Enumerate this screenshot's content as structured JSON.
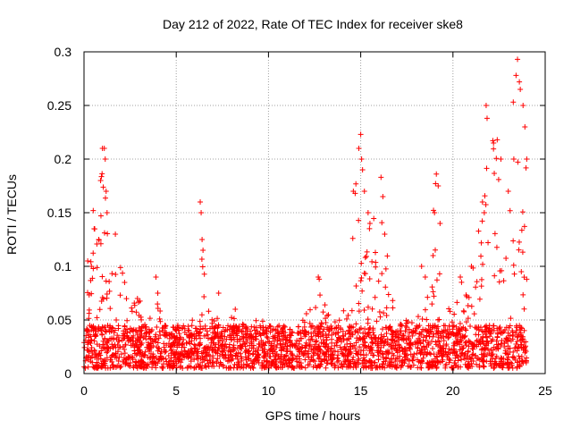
{
  "chart_data": {
    "type": "scatter",
    "title": "Day 212 of 2022, Rate Of TEC Index for receiver ske8",
    "xlabel": "GPS time / hours",
    "ylabel": "ROTI / TECUs",
    "xlim": [
      0,
      25
    ],
    "ylim": [
      0,
      0.3
    ],
    "xticks": [
      {
        "v": 0,
        "label": "0"
      },
      {
        "v": 5,
        "label": "5"
      },
      {
        "v": 10,
        "label": "10"
      },
      {
        "v": 15,
        "label": "15"
      },
      {
        "v": 20,
        "label": "20"
      },
      {
        "v": 25,
        "label": "25"
      }
    ],
    "yticks": [
      {
        "v": 0,
        "label": "0"
      },
      {
        "v": 0.05,
        "label": "0.05"
      },
      {
        "v": 0.1,
        "label": "0.1"
      },
      {
        "v": 0.15,
        "label": "0.15"
      },
      {
        "v": 0.2,
        "label": "0.2"
      },
      {
        "v": 0.25,
        "label": "0.25"
      },
      {
        "v": 0.3,
        "label": "0.3"
      }
    ],
    "grid": true,
    "marker": "plus",
    "color": "#ff0000",
    "data_x_range": [
      0,
      24
    ],
    "baseline_band": [
      0.005,
      0.045
    ],
    "envelope": [
      [
        0.0,
        0.06
      ],
      [
        0.3,
        0.1
      ],
      [
        0.6,
        0.15
      ],
      [
        1.0,
        0.21
      ],
      [
        1.4,
        0.1
      ],
      [
        1.8,
        0.13
      ],
      [
        2.3,
        0.07
      ],
      [
        3.0,
        0.07
      ],
      [
        3.5,
        0.05
      ],
      [
        4.0,
        0.09
      ],
      [
        4.5,
        0.05
      ],
      [
        5.5,
        0.04
      ],
      [
        6.2,
        0.06
      ],
      [
        6.5,
        0.16
      ],
      [
        6.8,
        0.06
      ],
      [
        7.5,
        0.06
      ],
      [
        8.5,
        0.05
      ],
      [
        10.0,
        0.05
      ],
      [
        11.5,
        0.04
      ],
      [
        12.7,
        0.09
      ],
      [
        13.5,
        0.05
      ],
      [
        14.3,
        0.08
      ],
      [
        14.8,
        0.2
      ],
      [
        15.0,
        0.22
      ],
      [
        15.3,
        0.16
      ],
      [
        15.8,
        0.15
      ],
      [
        16.2,
        0.18
      ],
      [
        16.7,
        0.07
      ],
      [
        17.5,
        0.05
      ],
      [
        18.3,
        0.1
      ],
      [
        18.8,
        0.12
      ],
      [
        19.1,
        0.19
      ],
      [
        19.4,
        0.07
      ],
      [
        20.0,
        0.06
      ],
      [
        20.5,
        0.09
      ],
      [
        21.0,
        0.1
      ],
      [
        21.5,
        0.18
      ],
      [
        21.8,
        0.25
      ],
      [
        22.3,
        0.22
      ],
      [
        22.8,
        0.16
      ],
      [
        23.2,
        0.25
      ],
      [
        23.5,
        0.29
      ],
      [
        23.8,
        0.27
      ],
      [
        24.0,
        0.2
      ]
    ],
    "peaks": [
      {
        "x": 0.2,
        "y": 0.105
      },
      {
        "x": 0.4,
        "y": 0.1
      },
      {
        "x": 0.5,
        "y": 0.152
      },
      {
        "x": 0.55,
        "y": 0.135
      },
      {
        "x": 0.8,
        "y": 0.125
      },
      {
        "x": 0.9,
        "y": 0.18
      },
      {
        "x": 1.0,
        "y": 0.21
      },
      {
        "x": 1.1,
        "y": 0.21
      },
      {
        "x": 1.15,
        "y": 0.2
      },
      {
        "x": 1.2,
        "y": 0.17
      },
      {
        "x": 1.25,
        "y": 0.15
      },
      {
        "x": 1.7,
        "y": 0.13
      },
      {
        "x": 2.2,
        "y": 0.085
      },
      {
        "x": 3.9,
        "y": 0.09
      },
      {
        "x": 4.0,
        "y": 0.075
      },
      {
        "x": 6.3,
        "y": 0.16
      },
      {
        "x": 6.35,
        "y": 0.15
      },
      {
        "x": 6.4,
        "y": 0.125
      },
      {
        "x": 6.45,
        "y": 0.115
      },
      {
        "x": 7.3,
        "y": 0.075
      },
      {
        "x": 8.2,
        "y": 0.06
      },
      {
        "x": 12.7,
        "y": 0.09
      },
      {
        "x": 12.75,
        "y": 0.088
      },
      {
        "x": 14.6,
        "y": 0.17
      },
      {
        "x": 14.7,
        "y": 0.168
      },
      {
        "x": 14.9,
        "y": 0.21
      },
      {
        "x": 15.0,
        "y": 0.223
      },
      {
        "x": 15.05,
        "y": 0.2
      },
      {
        "x": 15.1,
        "y": 0.19
      },
      {
        "x": 15.2,
        "y": 0.17
      },
      {
        "x": 15.4,
        "y": 0.15
      },
      {
        "x": 15.5,
        "y": 0.14
      },
      {
        "x": 16.1,
        "y": 0.183
      },
      {
        "x": 16.2,
        "y": 0.165
      },
      {
        "x": 16.3,
        "y": 0.13
      },
      {
        "x": 18.3,
        "y": 0.1
      },
      {
        "x": 18.5,
        "y": 0.09
      },
      {
        "x": 19.0,
        "y": 0.15
      },
      {
        "x": 19.1,
        "y": 0.186
      },
      {
        "x": 19.2,
        "y": 0.175
      },
      {
        "x": 19.3,
        "y": 0.14
      },
      {
        "x": 20.4,
        "y": 0.09
      },
      {
        "x": 21.0,
        "y": 0.1
      },
      {
        "x": 21.6,
        "y": 0.16
      },
      {
        "x": 21.7,
        "y": 0.15
      },
      {
        "x": 21.8,
        "y": 0.25
      },
      {
        "x": 21.85,
        "y": 0.238
      },
      {
        "x": 22.2,
        "y": 0.215
      },
      {
        "x": 22.4,
        "y": 0.218
      },
      {
        "x": 22.6,
        "y": 0.2
      },
      {
        "x": 23.0,
        "y": 0.17
      },
      {
        "x": 23.3,
        "y": 0.2
      },
      {
        "x": 23.5,
        "y": 0.293
      },
      {
        "x": 23.6,
        "y": 0.272
      },
      {
        "x": 23.65,
        "y": 0.265
      },
      {
        "x": 23.8,
        "y": 0.25
      },
      {
        "x": 23.9,
        "y": 0.23
      },
      {
        "x": 24.0,
        "y": 0.2
      }
    ]
  }
}
